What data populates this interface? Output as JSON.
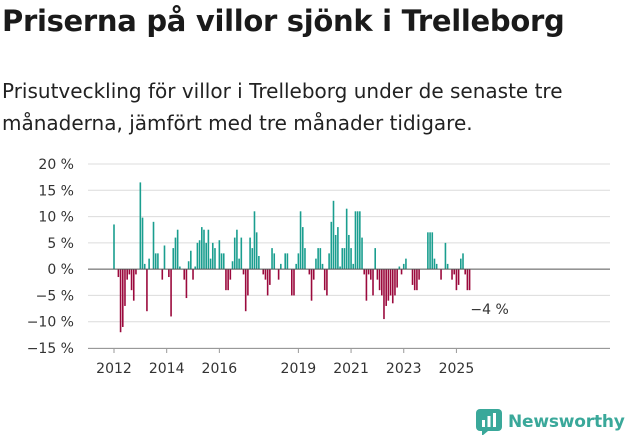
{
  "title": "Priserna på villor sjönk i Trelleborg",
  "subtitle": "Prisutveckling för villor i Trelleborg under de senaste tre månaderna, jämfört med tre månader tidigare.",
  "brand": {
    "name": "Newsworthy",
    "color": "#3aa89a"
  },
  "colors": {
    "positive": "#1a9e8f",
    "negative": "#9b0a3d",
    "grid": "#dcdcdc",
    "zero": "#555555"
  },
  "chart_data": {
    "type": "bar",
    "x_start": "2012-01",
    "x_step": "month",
    "ylim": [
      -15,
      20
    ],
    "y_ticks": [
      20,
      15,
      10,
      5,
      0,
      -5,
      -10,
      -15
    ],
    "y_tick_labels": [
      "20 %",
      "15 %",
      "10 %",
      "5 %",
      "0 %",
      "−5 %",
      "−10 %",
      "−15 %"
    ],
    "x_ticks": [
      {
        "label": "2012",
        "index": 0
      },
      {
        "label": "2014",
        "index": 24
      },
      {
        "label": "2016",
        "index": 48
      },
      {
        "label": "2019",
        "index": 84
      },
      {
        "label": "2021",
        "index": 108
      },
      {
        "label": "2023",
        "index": 132
      },
      {
        "label": "2025",
        "index": 156
      }
    ],
    "annotation": {
      "text": "−4 %",
      "index": 162
    },
    "values": [
      8.5,
      0,
      -1.5,
      -12,
      -11,
      -7,
      -2,
      -1,
      -4,
      -6,
      -1,
      0,
      16.5,
      9.8,
      1,
      -8,
      2,
      0,
      9,
      3,
      3,
      0,
      -2,
      4.5,
      0,
      -1.5,
      -9,
      4,
      6,
      7.5,
      0.5,
      0,
      -2,
      -5.5,
      1.5,
      3.5,
      -2,
      0.5,
      5,
      5.5,
      8,
      7.5,
      5,
      7.5,
      2,
      5,
      4,
      0,
      5.5,
      3,
      3,
      -4,
      -4,
      -2,
      1.5,
      6,
      7.5,
      2,
      6,
      -1,
      -8,
      -5,
      6,
      4,
      11,
      7,
      2.5,
      0,
      -1,
      -2,
      -5,
      -3,
      4,
      3,
      0,
      -2,
      1,
      0,
      3,
      3,
      0,
      -5,
      -5,
      1,
      3,
      11,
      8,
      4,
      0,
      -1,
      -6,
      -2,
      2,
      4,
      4,
      1,
      -4,
      -5,
      3,
      9,
      13,
      6.5,
      8,
      0.5,
      4,
      4,
      11.5,
      6.5,
      4,
      1,
      11,
      11,
      11,
      6,
      -1,
      -6,
      -1,
      -2,
      -5,
      4,
      -2,
      -4,
      -5,
      -9.5,
      -7,
      -6,
      -5,
      -6.5,
      -5,
      -3.5,
      0.5,
      -1,
      1,
      2,
      0,
      0,
      -3,
      -4,
      -4,
      -2,
      0,
      0,
      0,
      7,
      7,
      7,
      2,
      1,
      0,
      -2,
      0,
      5,
      1,
      0,
      -2,
      -1,
      -4,
      -3,
      2,
      3,
      -1,
      -4,
      -4
    ]
  }
}
